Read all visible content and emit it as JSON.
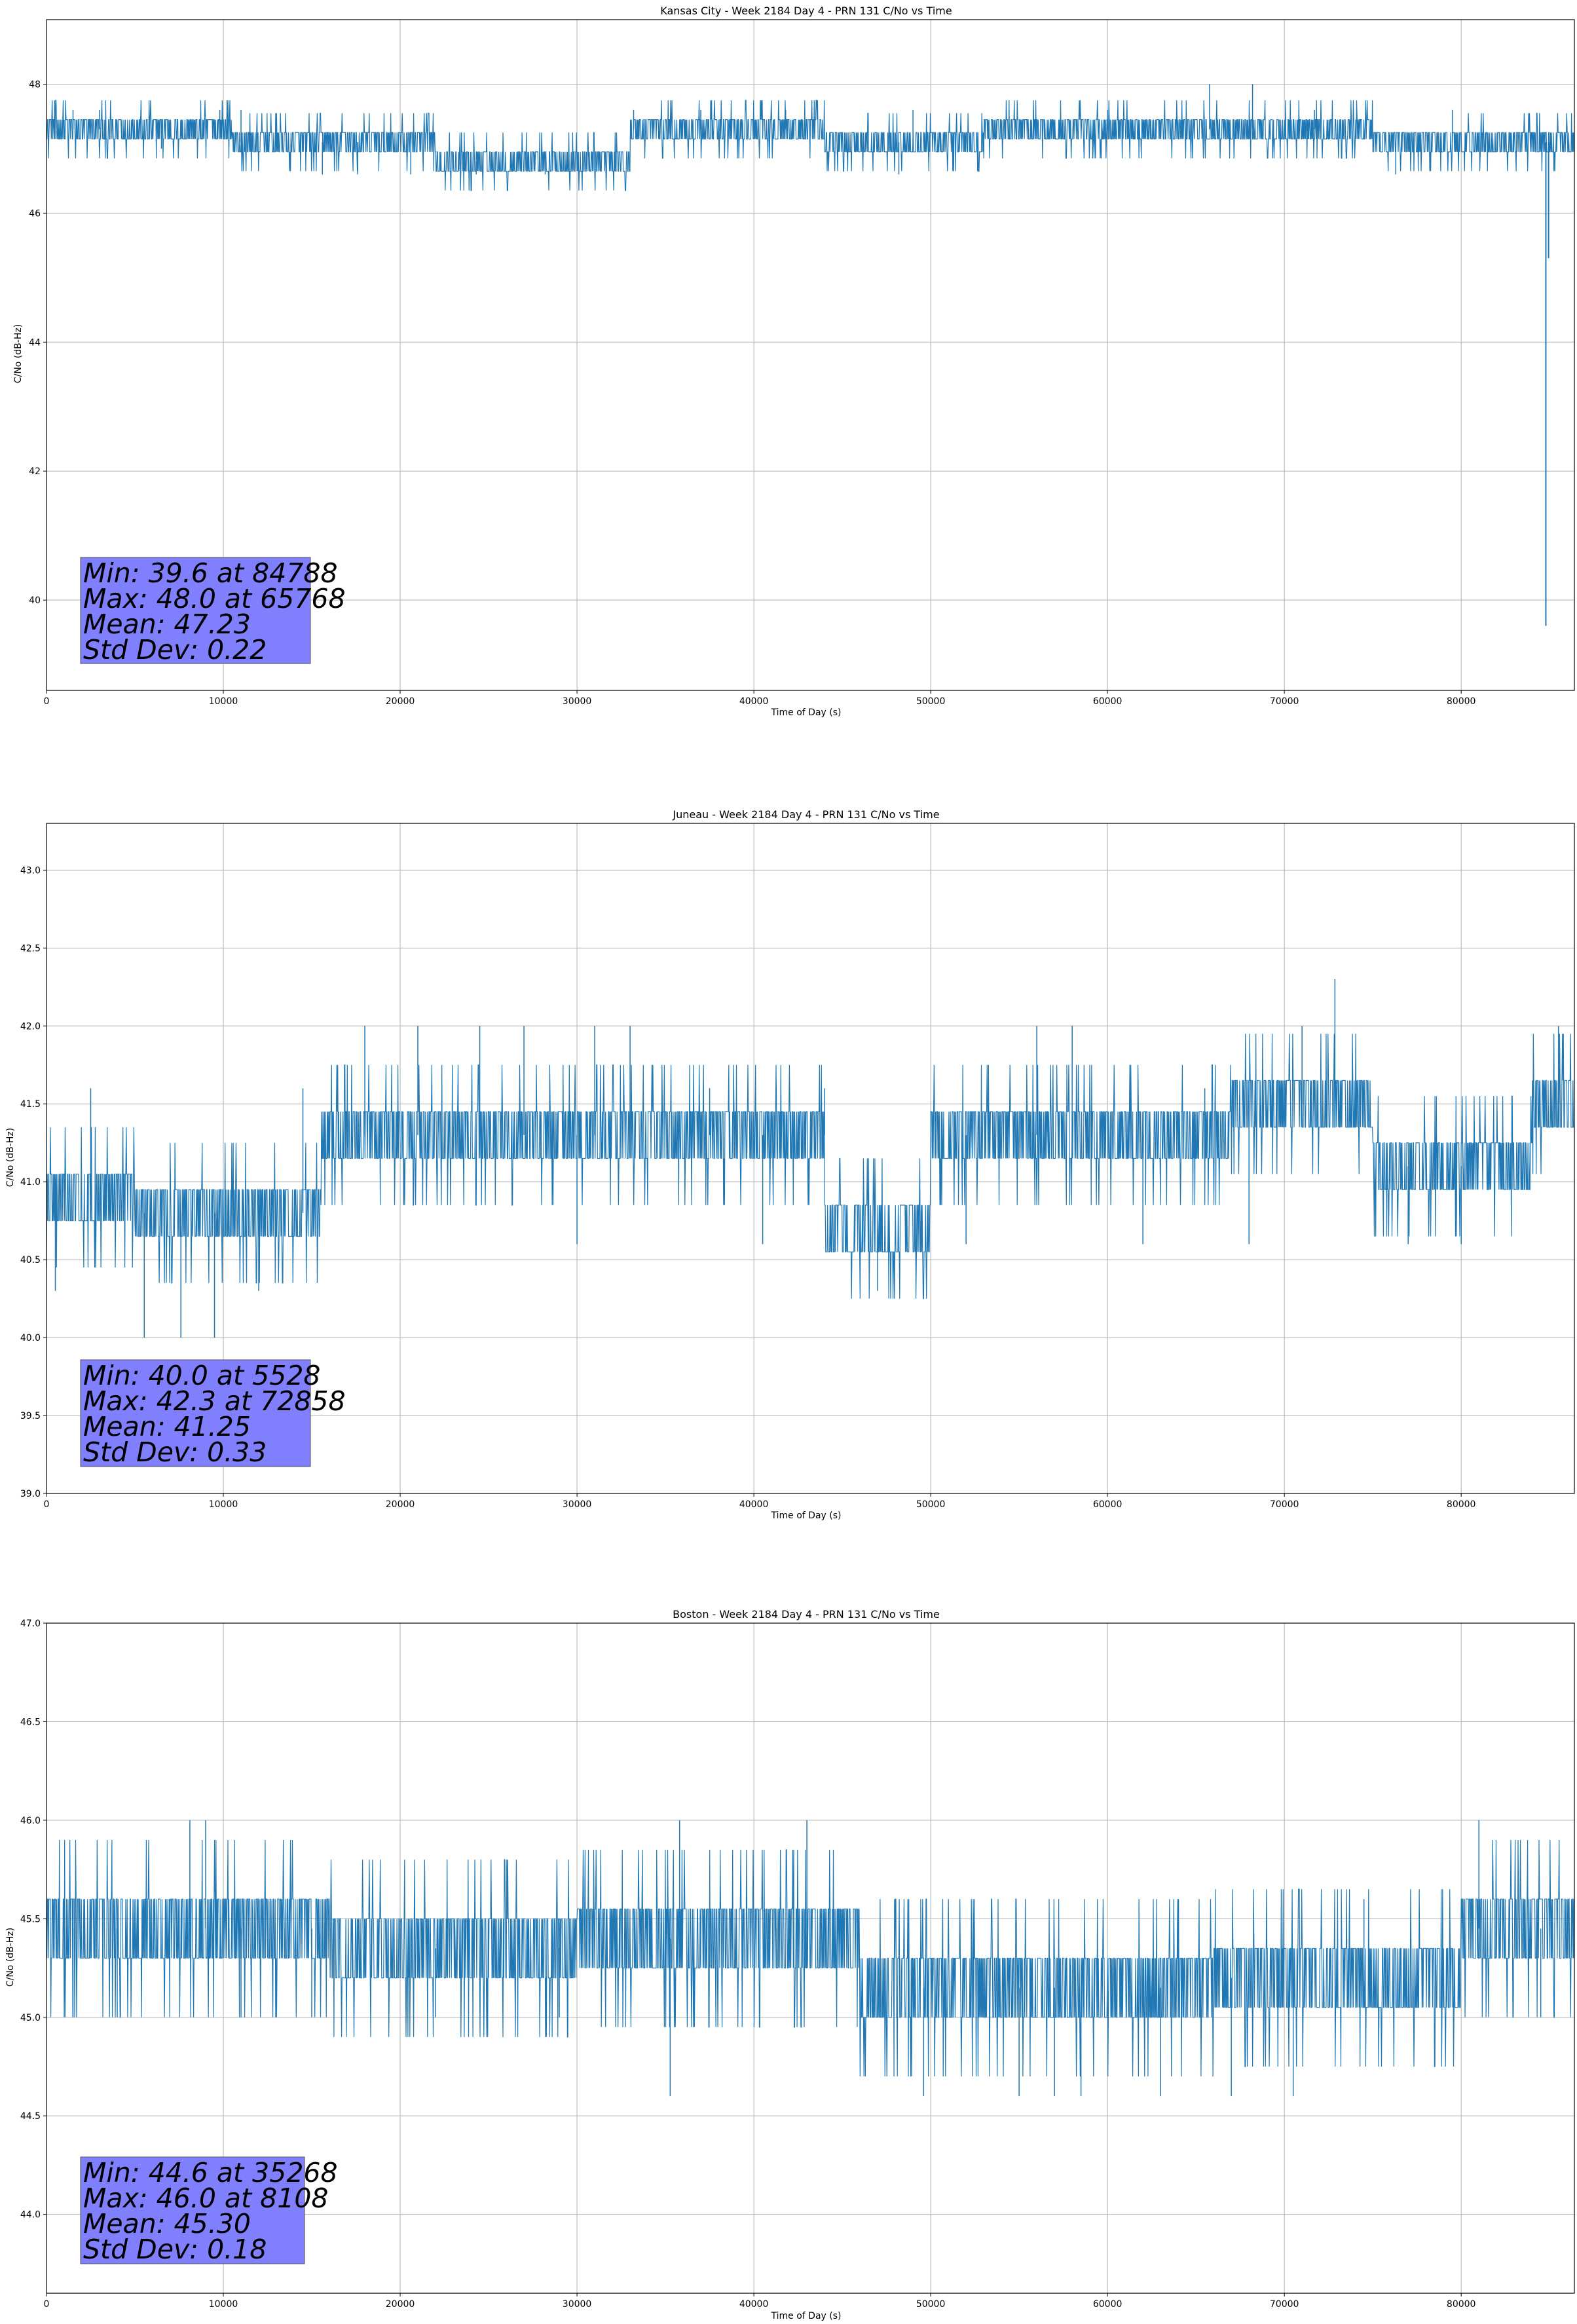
{
  "chart_data": [
    {
      "type": "line",
      "title": "Kansas City - Week 2184 Day 4 - PRN 131 C/No vs Time",
      "xlabel": "Time of Day (s)",
      "ylabel": "C/No (dB-Hz)",
      "xlim": [
        0,
        86400
      ],
      "ylim": [
        38.6,
        49.0
      ],
      "xticks": [
        0,
        10000,
        20000,
        30000,
        40000,
        50000,
        60000,
        70000,
        80000
      ],
      "yticks": [
        40,
        42,
        44,
        46,
        48
      ],
      "grid": true,
      "series_color": "#1f77b4",
      "base_levels": [
        47.0,
        47.3
      ],
      "segments": [
        [
          0,
          10500,
          47.3
        ],
        [
          10500,
          22000,
          47.1
        ],
        [
          22000,
          33000,
          46.8
        ],
        [
          33000,
          44000,
          47.3
        ],
        [
          44000,
          53000,
          47.1
        ],
        [
          53000,
          75000,
          47.3
        ],
        [
          75000,
          86400,
          47.1
        ]
      ],
      "spikes": [
        [
          1500,
          47.6
        ],
        [
          3000,
          47.6
        ],
        [
          6500,
          47.0
        ],
        [
          9800,
          47.6
        ],
        [
          11000,
          47.6
        ],
        [
          15600,
          46.6
        ],
        [
          17600,
          46.6
        ],
        [
          20600,
          46.6
        ],
        [
          24300,
          46.6
        ],
        [
          28200,
          46.6
        ],
        [
          33200,
          47.6
        ],
        [
          37000,
          47.6
        ],
        [
          41800,
          47.6
        ],
        [
          48200,
          46.6
        ],
        [
          49000,
          47.6
        ],
        [
          55800,
          47.6
        ],
        [
          60000,
          47.6
        ],
        [
          65768,
          48.0
        ],
        [
          68200,
          48.0
        ],
        [
          71700,
          47.6
        ],
        [
          76300,
          46.6
        ],
        [
          79500,
          47.6
        ],
        [
          84500,
          47.0
        ]
      ],
      "dip": [
        84788,
        39.6
      ],
      "dip_tail": [
        84940,
        45.3
      ],
      "stats": {
        "min": "Min: 39.6 at 84788",
        "max": "Max: 48.0 at 65768",
        "mean": "Mean: 47.23",
        "std": "Std Dev: 0.22"
      }
    },
    {
      "type": "line",
      "title": "Juneau - Week 2184 Day 4 - PRN 131 C/No vs Time",
      "xlabel": "Time of Day (s)",
      "ylabel": "C/No (dB-Hz)",
      "xlim": [
        0,
        86400
      ],
      "ylim": [
        39.0,
        43.3
      ],
      "xticks": [
        0,
        10000,
        20000,
        30000,
        40000,
        50000,
        60000,
        70000,
        80000
      ],
      "yticks": [
        39.0,
        39.5,
        40.0,
        40.5,
        41.0,
        41.5,
        42.0,
        42.5,
        43.0
      ],
      "grid": true,
      "series_color": "#1f77b4",
      "segments": [
        [
          0,
          5000,
          40.9
        ],
        [
          5000,
          15500,
          40.8
        ],
        [
          15500,
          26000,
          41.3
        ],
        [
          26000,
          36000,
          41.3
        ],
        [
          36000,
          44000,
          41.3
        ],
        [
          44000,
          50000,
          40.7
        ],
        [
          50000,
          67000,
          41.3
        ],
        [
          67000,
          75000,
          41.5
        ],
        [
          75000,
          84000,
          41.1
        ],
        [
          84000,
          86400,
          41.5
        ]
      ],
      "spikes": [
        [
          500,
          40.3
        ],
        [
          2500,
          41.6
        ],
        [
          5528,
          40.0
        ],
        [
          7600,
          40.0
        ],
        [
          9500,
          40.0
        ],
        [
          12000,
          40.3
        ],
        [
          14500,
          41.6
        ],
        [
          18000,
          42.0
        ],
        [
          21000,
          42.0
        ],
        [
          24500,
          42.0
        ],
        [
          27000,
          42.0
        ],
        [
          30000,
          40.6
        ],
        [
          31000,
          42.0
        ],
        [
          33000,
          42.0
        ],
        [
          37500,
          41.6
        ],
        [
          40500,
          40.6
        ],
        [
          44000,
          41.6
        ],
        [
          47000,
          40.3
        ],
        [
          52000,
          40.6
        ],
        [
          56000,
          42.0
        ],
        [
          58000,
          42.0
        ],
        [
          62000,
          40.6
        ],
        [
          65500,
          41.6
        ],
        [
          68000,
          40.6
        ],
        [
          71000,
          42.0
        ],
        [
          72858,
          42.3
        ],
        [
          77000,
          40.6
        ],
        [
          80000,
          40.6
        ],
        [
          85500,
          42.0
        ]
      ],
      "stats": {
        "min": "Min: 40.0 at 5528",
        "max": "Max: 42.3 at 72858",
        "mean": "Mean: 41.25",
        "std": "Std Dev: 0.33"
      }
    },
    {
      "type": "line",
      "title": "Boston - Week 2184 Day 4 - PRN 131 C/No vs Time",
      "xlabel": "Time of Day (s)",
      "ylabel": "C/No (dB-Hz)",
      "xlim": [
        0,
        86400
      ],
      "ylim": [
        43.6,
        47.0
      ],
      "xticks": [
        0,
        10000,
        20000,
        30000,
        40000,
        50000,
        60000,
        70000,
        80000
      ],
      "yticks": [
        44.0,
        44.5,
        45.0,
        45.5,
        46.0,
        46.5,
        47.0
      ],
      "grid": true,
      "series_color": "#1f77b4",
      "segments": [
        [
          0,
          16000,
          45.45
        ],
        [
          16000,
          30000,
          45.35
        ],
        [
          30000,
          46000,
          45.4
        ],
        [
          46000,
          66000,
          45.15
        ],
        [
          66000,
          80000,
          45.2
        ],
        [
          80000,
          86400,
          45.45
        ]
      ],
      "spikes": [
        [
          1500,
          45.0
        ],
        [
          4000,
          45.0
        ],
        [
          8108,
          46.0
        ],
        [
          9000,
          46.0
        ],
        [
          11000,
          45.0
        ],
        [
          15000,
          45.0
        ],
        [
          22000,
          45.0
        ],
        [
          29000,
          45.0
        ],
        [
          35268,
          44.6
        ],
        [
          35800,
          46.0
        ],
        [
          43000,
          46.0
        ],
        [
          44500,
          45.6
        ],
        [
          49600,
          44.6
        ],
        [
          55000,
          44.6
        ],
        [
          57000,
          44.6
        ],
        [
          58500,
          44.6
        ],
        [
          63000,
          44.6
        ],
        [
          67000,
          44.6
        ],
        [
          70500,
          44.6
        ],
        [
          74500,
          45.6
        ],
        [
          81000,
          46.0
        ],
        [
          84500,
          45.0
        ]
      ],
      "stats": {
        "min": "Min: 44.6 at 35268",
        "max": "Max: 46.0 at 8108",
        "mean": "Mean: 45.30",
        "std": "Std Dev: 0.18"
      }
    }
  ]
}
